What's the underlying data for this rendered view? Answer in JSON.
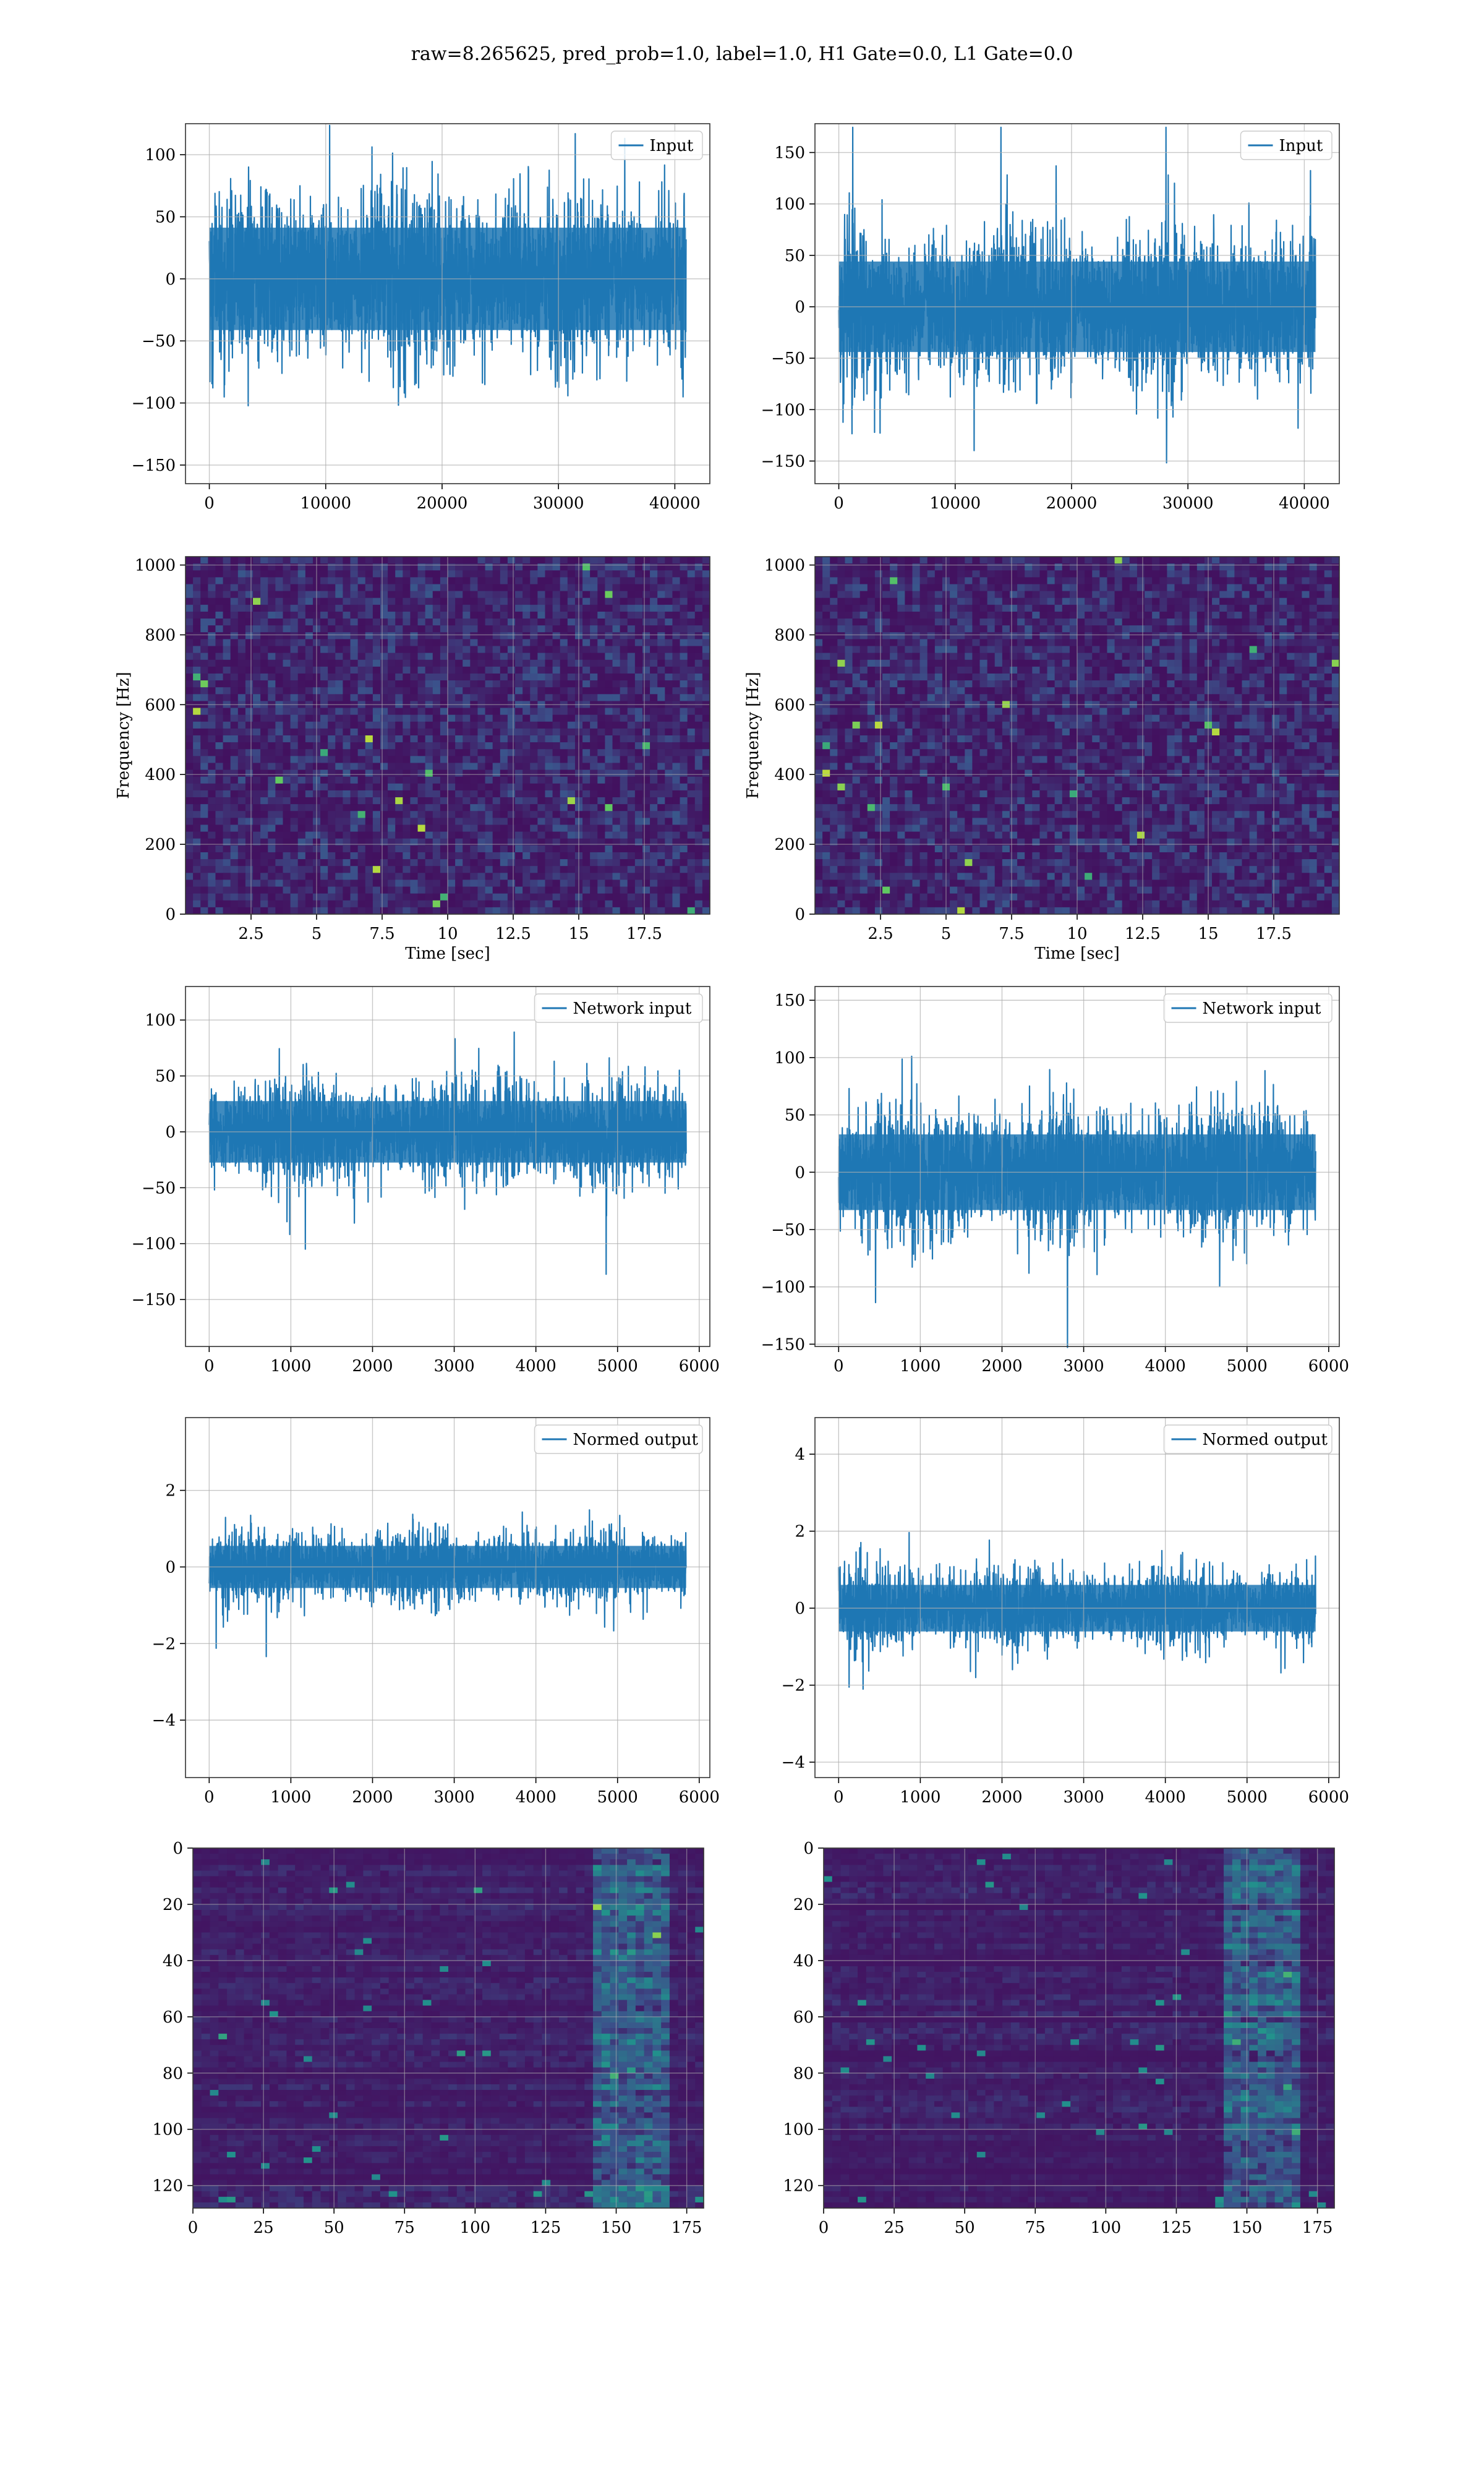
{
  "title": "raw=8.265625, pred_prob=1.0, label=1.0, H1 Gate=0.0, L1 Gate=0.0",
  "colors": {
    "line": "#1f77b4",
    "grid": "#b0b0b0",
    "viridis_low": "#440154",
    "viridis_high": "#fde725"
  },
  "chart_data": [
    {
      "id": "input-left",
      "type": "line",
      "row": 1,
      "col": 1,
      "series": [
        {
          "name": "Input",
          "amplitude": 75,
          "n_samples": 40960
        }
      ],
      "xlim": [
        -2048,
        43008
      ],
      "ylim": [
        -165,
        125
      ],
      "xticks": [
        0,
        10000,
        20000,
        30000,
        40000
      ],
      "yticks": [
        100,
        50,
        0,
        -50,
        -100,
        -150
      ],
      "xlabel": "",
      "ylabel": "",
      "grid": true,
      "legend": "top-right"
    },
    {
      "id": "input-right",
      "type": "line",
      "row": 1,
      "col": 2,
      "series": [
        {
          "name": "Input",
          "amplitude": 80,
          "n_samples": 40960
        }
      ],
      "xlim": [
        -2048,
        43008
      ],
      "ylim": [
        -172,
        178
      ],
      "xticks": [
        0,
        10000,
        20000,
        30000,
        40000
      ],
      "yticks": [
        150,
        100,
        50,
        0,
        -50,
        -100,
        -150
      ],
      "xlabel": "",
      "ylabel": "",
      "grid": true,
      "legend": "top-right"
    },
    {
      "id": "spectrogram-left",
      "type": "heatmap",
      "row": 2,
      "col": 1,
      "xlim": [
        0,
        20
      ],
      "ylim": [
        0,
        1024
      ],
      "xticks": [
        2.5,
        5.0,
        7.5,
        10.0,
        12.5,
        15.0,
        17.5
      ],
      "yticks": [
        1000,
        800,
        600,
        400,
        200,
        0
      ],
      "xlabel": "Time [sec]",
      "ylabel": "Frequency [Hz]",
      "grid": true,
      "colormap": "viridis"
    },
    {
      "id": "spectrogram-right",
      "type": "heatmap",
      "row": 2,
      "col": 2,
      "xlim": [
        0,
        20
      ],
      "ylim": [
        0,
        1024
      ],
      "xticks": [
        2.5,
        5.0,
        7.5,
        10.0,
        12.5,
        15.0,
        17.5
      ],
      "yticks": [
        1000,
        800,
        600,
        400,
        200,
        0
      ],
      "xlabel": "Time [sec]",
      "ylabel": "Frequency [Hz]",
      "grid": true,
      "colormap": "viridis"
    },
    {
      "id": "network-input-left",
      "type": "line",
      "row": 3,
      "col": 1,
      "series": [
        {
          "name": "Network input",
          "amplitude": 50,
          "n_samples": 5840
        }
      ],
      "xlim": [
        -290,
        6130
      ],
      "ylim": [
        -192,
        130
      ],
      "xticks": [
        0,
        1000,
        2000,
        3000,
        4000,
        5000,
        6000
      ],
      "yticks": [
        100,
        50,
        0,
        -50,
        -100,
        -150
      ],
      "xlabel": "",
      "ylabel": "",
      "grid": true,
      "legend": "top-right"
    },
    {
      "id": "network-input-right",
      "type": "line",
      "row": 3,
      "col": 2,
      "series": [
        {
          "name": "Network input",
          "amplitude": 60,
          "n_samples": 5840
        }
      ],
      "xlim": [
        -290,
        6130
      ],
      "ylim": [
        -152,
        162
      ],
      "xticks": [
        0,
        1000,
        2000,
        3000,
        4000,
        5000,
        6000
      ],
      "yticks": [
        150,
        100,
        50,
        0,
        -50,
        -100,
        -150
      ],
      "xlabel": "",
      "ylabel": "",
      "grid": true,
      "legend": "top-right"
    },
    {
      "id": "normed-output-left",
      "type": "line",
      "row": 4,
      "col": 1,
      "series": [
        {
          "name": "Normed output",
          "amplitude": 1.0,
          "n_samples": 5840
        }
      ],
      "xlim": [
        -290,
        6130
      ],
      "ylim": [
        -5.5,
        3.9
      ],
      "xticks": [
        0,
        1000,
        2000,
        3000,
        4000,
        5000,
        6000
      ],
      "yticks": [
        2,
        0,
        -2,
        -4
      ],
      "xlabel": "",
      "ylabel": "",
      "grid": true,
      "legend": "top-right"
    },
    {
      "id": "normed-output-right",
      "type": "line",
      "row": 4,
      "col": 2,
      "series": [
        {
          "name": "Normed output",
          "amplitude": 1.1,
          "n_samples": 5840
        }
      ],
      "xlim": [
        -290,
        6130
      ],
      "ylim": [
        -4.4,
        4.95
      ],
      "xticks": [
        0,
        1000,
        2000,
        3000,
        4000,
        5000,
        6000
      ],
      "yticks": [
        4,
        2,
        0,
        -2,
        -4
      ],
      "xlabel": "",
      "ylabel": "",
      "grid": true,
      "legend": "top-right"
    },
    {
      "id": "feature-map-left",
      "type": "heatmap",
      "row": 5,
      "col": 1,
      "xlim": [
        0,
        181
      ],
      "ylim": [
        128,
        0
      ],
      "xticks": [
        0,
        25,
        50,
        75,
        100,
        125,
        150,
        175
      ],
      "yticks": [
        0,
        20,
        40,
        60,
        80,
        100,
        120
      ],
      "xlabel": "",
      "ylabel": "",
      "grid": true,
      "colormap": "viridis"
    },
    {
      "id": "feature-map-right",
      "type": "heatmap",
      "row": 5,
      "col": 2,
      "xlim": [
        0,
        181
      ],
      "ylim": [
        128,
        0
      ],
      "xticks": [
        0,
        25,
        50,
        75,
        100,
        125,
        150,
        175
      ],
      "yticks": [
        0,
        20,
        40,
        60,
        80,
        100,
        120
      ],
      "xlabel": "",
      "ylabel": "",
      "grid": true,
      "colormap": "viridis"
    }
  ]
}
